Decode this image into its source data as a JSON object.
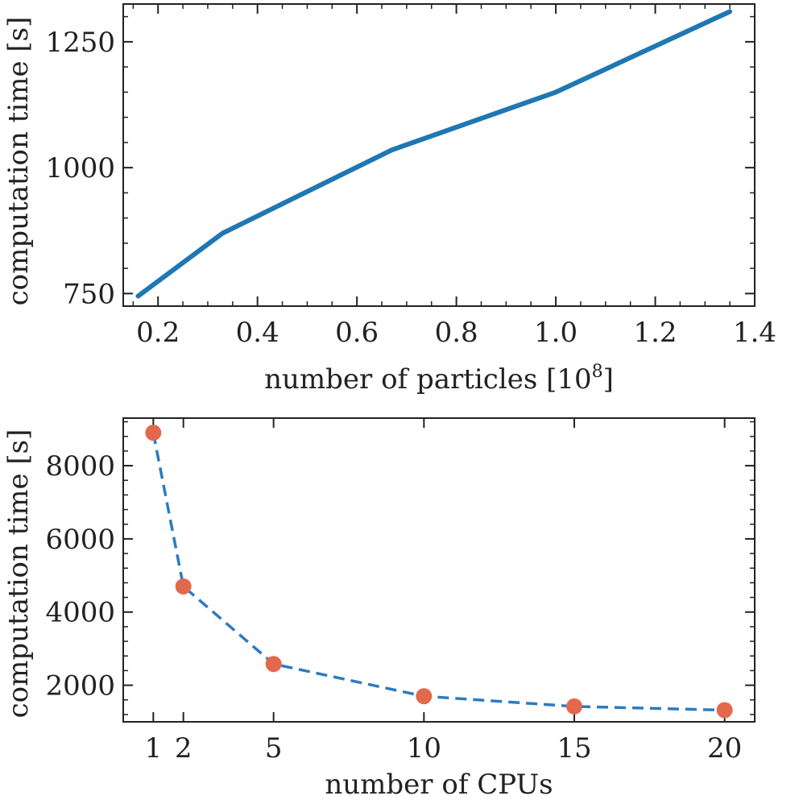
{
  "colors": {
    "line": "#1f77b4",
    "dashed_line": "#2b7bbf",
    "marker": "#e2694d",
    "axes": "#222222"
  },
  "chart_data": [
    {
      "type": "line",
      "x": [
        0.16,
        0.33,
        0.67,
        1.0,
        1.35
      ],
      "y": [
        745,
        870,
        1035,
        1150,
        1310
      ],
      "xlabel": "number of particles [10",
      "xlabel_sup": "8",
      "xlabel_end": "]",
      "ylabel": "computation time [s]",
      "xlim": [
        0.13,
        1.4
      ],
      "ylim": [
        725,
        1325
      ],
      "xticks": [
        0.2,
        0.4,
        0.6,
        0.8,
        1.0,
        1.2,
        1.4
      ],
      "xtick_labels": [
        "0.2",
        "0.4",
        "0.6",
        "0.8",
        "1.0",
        "1.2",
        "1.4"
      ],
      "yticks": [
        750,
        1000,
        1250
      ],
      "ytick_labels": [
        "750",
        "1000",
        "1250"
      ],
      "series": [
        {
          "name": "computation time",
          "style": "solid"
        }
      ]
    },
    {
      "type": "line",
      "x": [
        1,
        2,
        5,
        10,
        15,
        20
      ],
      "y": [
        8900,
        4700,
        2580,
        1700,
        1420,
        1320
      ],
      "xlabel": "number of CPUs",
      "ylabel": "computation time [s]",
      "xlim": [
        0,
        21
      ],
      "ylim": [
        1000,
        9300
      ],
      "xticks": [
        1,
        2,
        5,
        10,
        15,
        20
      ],
      "xtick_labels": [
        "1",
        "2",
        "5",
        "10",
        "15",
        "20"
      ],
      "yticks": [
        2000,
        4000,
        6000,
        8000
      ],
      "ytick_labels": [
        "2000",
        "4000",
        "6000",
        "8000"
      ],
      "series": [
        {
          "name": "computation time",
          "style": "dashed",
          "markers": true
        }
      ]
    }
  ]
}
